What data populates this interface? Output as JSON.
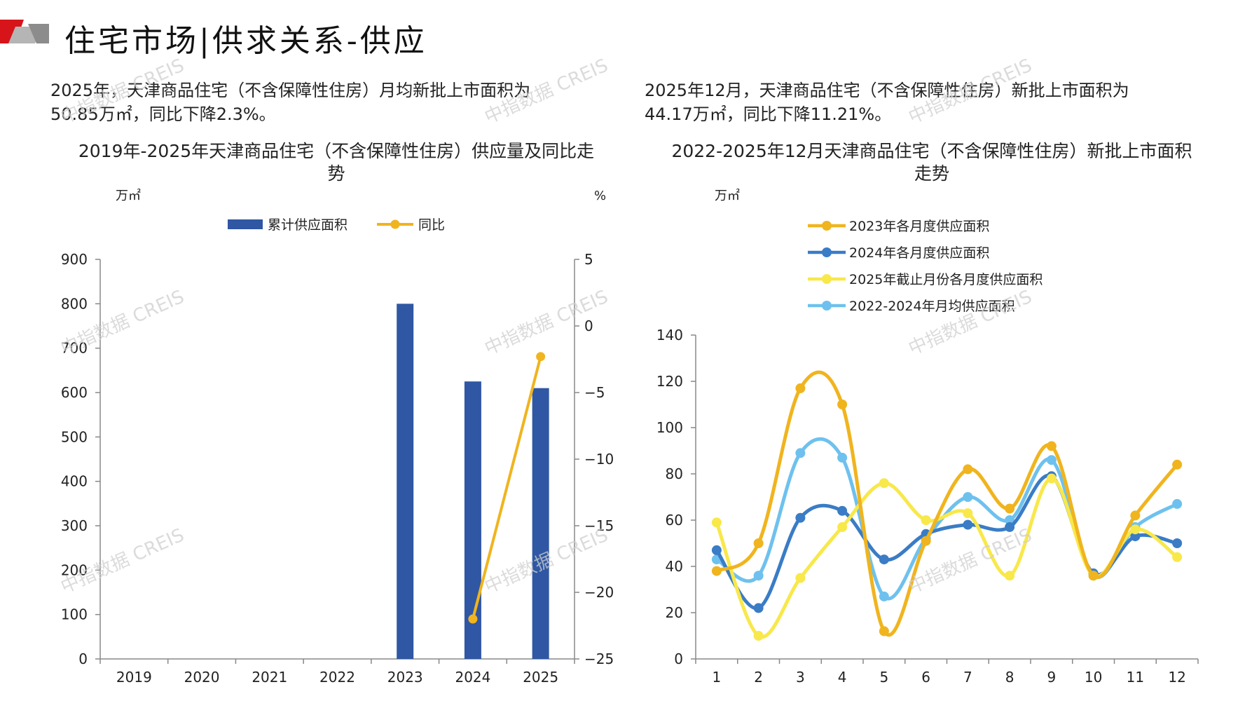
{
  "header": {
    "title": "住宅市场|供求关系-供应",
    "accent_red": "#d7141a",
    "accent_grey": "#8c8c8c"
  },
  "left": {
    "summary_line1": "2025年，天津商品住宅（不含保障性住房）月均新批上市面积为",
    "summary_line2": "50.85万㎡，同比下降2.3%。"
  },
  "right": {
    "summary_line1": "2025年12月，天津商品住宅（不含保障性住房）新批上市面积为",
    "summary_line2": "44.17万㎡，同比下降11.21%。"
  },
  "watermark": "中指数据 CREIS",
  "chart_data": [
    {
      "type": "bar",
      "title_line1": "2019年-2025年天津商品住宅（不含保障性住房）供应量及同比走",
      "title_line2": "势",
      "ylabel": "万㎡",
      "y2label": "%",
      "categories": [
        "2019",
        "2020",
        "2021",
        "2022",
        "2023",
        "2024",
        "2025"
      ],
      "ylim": [
        0,
        900
      ],
      "yticks": [
        0,
        100,
        200,
        300,
        400,
        500,
        600,
        700,
        800,
        900
      ],
      "y2lim": [
        -25,
        5
      ],
      "y2ticks": [
        5,
        0,
        -5,
        -10,
        -15,
        -20,
        -25
      ],
      "series": [
        {
          "name": "累计供应面积",
          "kind": "bar",
          "axis": "left",
          "color": "#2f57a3",
          "values": [
            null,
            null,
            null,
            null,
            800,
            625,
            610
          ]
        },
        {
          "name": "同比",
          "kind": "line",
          "axis": "right",
          "color": "#f0b41e",
          "values": [
            null,
            null,
            null,
            null,
            null,
            -22,
            -2.3
          ]
        }
      ],
      "legend": "top-center"
    },
    {
      "type": "line",
      "title_line1": "2022-2025年12月天津商品住宅（不含保障性住房）新批上市面积",
      "title_line2": "走势",
      "ylabel": "万㎡",
      "x": [
        "1",
        "2",
        "3",
        "4",
        "5",
        "6",
        "7",
        "8",
        "9",
        "10",
        "11",
        "12"
      ],
      "ylim": [
        0,
        140
      ],
      "yticks": [
        0,
        20,
        40,
        60,
        80,
        100,
        120,
        140
      ],
      "series": [
        {
          "name": "2023年各月度供应面积",
          "color": "#f0b41e",
          "values": [
            38,
            50,
            117,
            110,
            12,
            51,
            82,
            65,
            92,
            36,
            62,
            84
          ]
        },
        {
          "name": "2024年各月度供应面积",
          "color": "#3a7cc5",
          "values": [
            47,
            22,
            61,
            64,
            43,
            54,
            58,
            57,
            79,
            37,
            53,
            50
          ]
        },
        {
          "name": "2025年截止月份各月度供应面积",
          "color": "#f8e84a",
          "values": [
            59,
            10,
            35,
            57,
            76,
            60,
            63,
            36,
            78,
            36,
            56,
            44
          ]
        },
        {
          "name": "2022-2024年月均供应面积",
          "color": "#6ec1ee",
          "values": [
            43,
            36,
            89,
            87,
            27,
            52,
            70,
            60,
            86,
            36,
            57,
            67
          ]
        }
      ],
      "legend": "top-left"
    }
  ]
}
